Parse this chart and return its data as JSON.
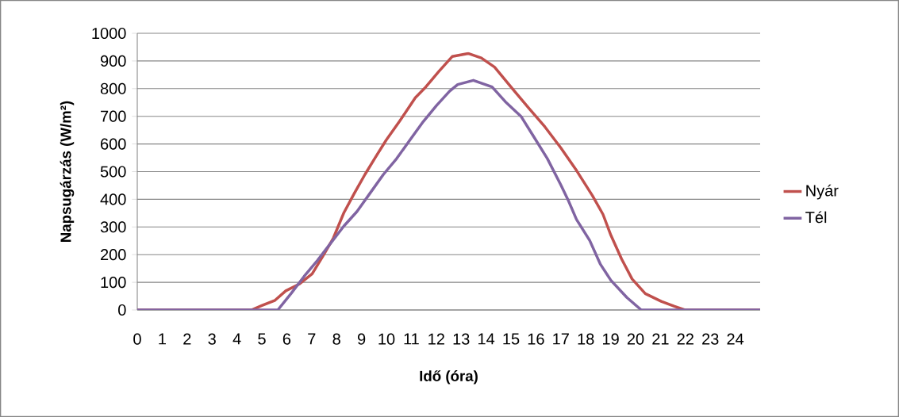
{
  "chart_data": {
    "type": "line",
    "xlabel": "Idő (óra)",
    "ylabel": "Napsugárzás (W/m²)",
    "xlim": [
      0,
      25
    ],
    "xticks": [
      0,
      1,
      2,
      3,
      4,
      5,
      6,
      7,
      8,
      9,
      10,
      11,
      12,
      13,
      14,
      15,
      16,
      17,
      18,
      19,
      20,
      21,
      22,
      23,
      24
    ],
    "ylim": [
      0,
      1000
    ],
    "yticks": [
      0,
      100,
      200,
      300,
      400,
      500,
      600,
      700,
      800,
      900,
      1000
    ],
    "grid": "y",
    "legend": "right",
    "marker": "none",
    "line_style": "solid",
    "series": [
      {
        "name": "Nyár",
        "color": "#c0504d",
        "x": [
          0,
          4.58,
          5.0,
          5.53,
          5.96,
          6.49,
          7.02,
          7.44,
          7.87,
          8.29,
          8.72,
          9.14,
          9.56,
          9.99,
          10.52,
          11.16,
          11.58,
          12.11,
          12.64,
          13.28,
          13.81,
          14.34,
          15.09,
          15.72,
          16.36,
          17.0,
          17.63,
          18.27,
          18.69,
          19.01,
          19.44,
          19.86,
          20.39,
          21.03,
          21.56,
          21.98,
          25
        ],
        "values": [
          0,
          0,
          16,
          35,
          69,
          93,
          131,
          193,
          260,
          351,
          423,
          490,
          552,
          614,
          681,
          767,
          806,
          863,
          916,
          927,
          911,
          878,
          796,
          729,
          662,
          586,
          504,
          413,
          346,
          270,
          184,
          112,
          59,
          31,
          13,
          0,
          0
        ]
      },
      {
        "name": "Tél",
        "color": "#8064a2",
        "x": [
          0,
          5.64,
          6.17,
          6.7,
          7.23,
          7.76,
          8.29,
          8.82,
          9.35,
          9.88,
          10.41,
          10.94,
          11.48,
          12.01,
          12.54,
          12.86,
          13.49,
          14.24,
          14.77,
          15.4,
          15.93,
          16.46,
          17.0,
          17.31,
          17.63,
          18.16,
          18.59,
          19.01,
          19.65,
          20.23,
          25
        ],
        "values": [
          0,
          0,
          59,
          122,
          179,
          241,
          303,
          356,
          423,
          490,
          547,
          614,
          681,
          739,
          791,
          815,
          830,
          806,
          753,
          700,
          624,
          547,
          452,
          394,
          327,
          251,
          165,
          107,
          45,
          0,
          0
        ]
      }
    ]
  }
}
